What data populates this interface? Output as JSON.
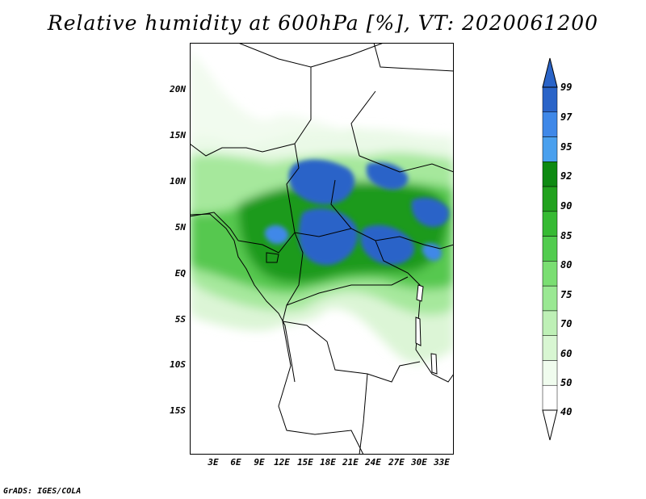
{
  "title": "Relative humidity at 600hPa [%], VT: 2020061200",
  "lat_labels": [
    "20N",
    "15N",
    "10N",
    "5N",
    "EQ",
    "5S",
    "10S",
    "15S"
  ],
  "lon_labels": [
    "3E",
    "6E",
    "9E",
    "12E",
    "15E",
    "18E",
    "21E",
    "24E",
    "27E",
    "30E",
    "33E"
  ],
  "colorbar": {
    "levels": [
      "99",
      "97",
      "95",
      "92",
      "90",
      "85",
      "80",
      "75",
      "70",
      "60",
      "50",
      "40"
    ],
    "colors": [
      "#2a64c8",
      "#3f88e8",
      "#4aa0ee",
      "#0e8a12",
      "#22a21e",
      "#36ba33",
      "#52cc4f",
      "#7ade72",
      "#9ae893",
      "#bef0b6",
      "#d8f6d2",
      "#f0fcee",
      "#ffffff"
    ]
  },
  "credit": "GrADS: IGES/COLA"
}
